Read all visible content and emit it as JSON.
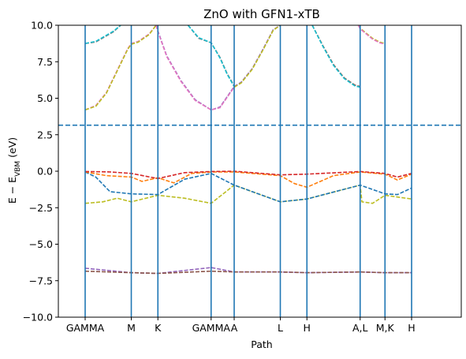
{
  "chart_data": {
    "type": "line",
    "title": "ZnO with GFN1-xTB",
    "xlabel": "Path",
    "ylabel": "E − E_VBM (eV)",
    "ylim": [
      -10,
      10
    ],
    "yticks": [
      -10.0,
      -7.5,
      -5.0,
      -2.5,
      0.0,
      2.5,
      5.0,
      7.5,
      10.0
    ],
    "ytick_labels": [
      "−10.0",
      "−7.5",
      "−5.0",
      "−2.5",
      "0.0",
      "2.5",
      "5.0",
      "7.5",
      "10.0"
    ],
    "x_range": [
      0,
      1
    ],
    "kpoints": [
      {
        "label": "GAMMA",
        "x": 0.0
      },
      {
        "label": "M",
        "x": 0.13
      },
      {
        "label": "K",
        "x": 0.205
      },
      {
        "label": "GAMMA",
        "x": 0.355
      },
      {
        "label": "A",
        "x": 0.42
      },
      {
        "label": "L",
        "x": 0.55
      },
      {
        "label": "H",
        "x": 0.625
      },
      {
        "label": "A,L",
        "x": 0.775
      },
      {
        "label": "M,K",
        "x": 0.845
      },
      {
        "label": "H",
        "x": 0.92
      }
    ],
    "vbm_offset_line": 3.15,
    "grid": false,
    "series": [
      {
        "color": "#9467bd",
        "x": [
          0.0,
          0.13,
          0.205,
          0.355,
          0.42,
          0.55,
          0.625,
          0.775,
          0.845,
          0.92
        ],
        "values": [
          -6.65,
          -6.95,
          -7.0,
          -6.6,
          -6.9,
          -6.9,
          -6.95,
          -6.9,
          -6.95,
          -6.95
        ]
      },
      {
        "color": "#8c564b",
        "x": [
          0.0,
          0.13,
          0.205,
          0.355,
          0.42,
          0.55,
          0.625,
          0.775,
          0.845,
          0.92
        ],
        "values": [
          -6.85,
          -6.95,
          -7.0,
          -6.85,
          -6.9,
          -6.9,
          -6.95,
          -6.9,
          -6.95,
          -6.95
        ]
      },
      {
        "color": "#bcbd22",
        "x": [
          0.0,
          0.05,
          0.09,
          0.13,
          0.205,
          0.28,
          0.355,
          0.42,
          0.55,
          0.625,
          0.775,
          0.78,
          0.81,
          0.845,
          0.92
        ],
        "values": [
          -2.2,
          -2.1,
          -1.85,
          -2.1,
          -1.65,
          -1.85,
          -2.2,
          -0.95,
          -2.1,
          -1.9,
          -0.95,
          -2.1,
          -2.2,
          -1.65,
          -1.9
        ]
      },
      {
        "color": "#1f77b4",
        "x": [
          0.0,
          0.03,
          0.07,
          0.13,
          0.205,
          0.28,
          0.355,
          0.42,
          0.55,
          0.625,
          0.775,
          0.845,
          0.88,
          0.92
        ],
        "values": [
          -0.05,
          -0.4,
          -1.4,
          -1.55,
          -1.6,
          -0.55,
          -0.15,
          -0.95,
          -2.1,
          -1.9,
          -0.95,
          -1.55,
          -1.6,
          -1.15
        ]
      },
      {
        "color": "#ff7f0e",
        "x": [
          0.0,
          0.06,
          0.13,
          0.16,
          0.205,
          0.25,
          0.3,
          0.355,
          0.42,
          0.55,
          0.59,
          0.625,
          0.7,
          0.775,
          0.845,
          0.88,
          0.92
        ],
        "values": [
          -0.05,
          -0.3,
          -0.4,
          -0.7,
          -0.45,
          -0.8,
          -0.15,
          -0.05,
          -0.05,
          -0.3,
          -0.85,
          -1.1,
          -0.3,
          -0.05,
          -0.2,
          -0.6,
          -0.2
        ]
      },
      {
        "color": "#d62728",
        "x": [
          0.0,
          0.07,
          0.13,
          0.205,
          0.28,
          0.355,
          0.42,
          0.55,
          0.625,
          0.775,
          0.845,
          0.88,
          0.92
        ],
        "values": [
          -0.02,
          -0.05,
          -0.15,
          -0.5,
          -0.1,
          -0.02,
          0.0,
          -0.25,
          -0.2,
          -0.02,
          -0.15,
          -0.4,
          -0.15
        ]
      },
      {
        "color": "#7f7f7f",
        "x": [
          0.0,
          0.03,
          0.08,
          0.1
        ],
        "values": [
          8.75,
          8.85,
          9.55,
          10.0
        ]
      },
      {
        "color": "#17becf",
        "x": [
          0.0,
          0.03,
          0.08,
          0.1
        ],
        "values": [
          8.75,
          8.9,
          9.6,
          10.0
        ]
      },
      {
        "color": "#e377c2",
        "x": [
          0.0,
          0.03,
          0.06,
          0.09,
          0.12,
          0.13,
          0.15,
          0.18,
          0.2
        ],
        "values": [
          4.2,
          4.5,
          5.4,
          6.9,
          8.4,
          8.75,
          8.9,
          9.4,
          10.0
        ]
      },
      {
        "color": "#bcbd22",
        "x": [
          0.0,
          0.03,
          0.06,
          0.09,
          0.12,
          0.13,
          0.15,
          0.18,
          0.2
        ],
        "values": [
          4.2,
          4.45,
          5.35,
          6.85,
          8.35,
          8.7,
          8.85,
          9.35,
          10.0
        ]
      },
      {
        "color": "#9467bd",
        "x": [
          0.2,
          0.205,
          0.23,
          0.27,
          0.31,
          0.355,
          0.38,
          0.42
        ],
        "values": [
          10.0,
          9.6,
          7.9,
          6.2,
          4.9,
          4.2,
          4.4,
          5.8
        ]
      },
      {
        "color": "#e377c2",
        "x": [
          0.2,
          0.205,
          0.23,
          0.27,
          0.31,
          0.355,
          0.38,
          0.42
        ],
        "values": [
          10.0,
          9.55,
          7.85,
          6.15,
          4.85,
          4.2,
          4.35,
          5.75
        ]
      },
      {
        "color": "#7f7f7f",
        "x": [
          0.29,
          0.32,
          0.355,
          0.38,
          0.4,
          0.42
        ],
        "values": [
          10.0,
          9.1,
          8.8,
          7.8,
          6.7,
          5.85
        ]
      },
      {
        "color": "#17becf",
        "x": [
          0.29,
          0.32,
          0.355,
          0.38,
          0.4,
          0.42
        ],
        "values": [
          10.0,
          9.15,
          8.8,
          7.75,
          6.65,
          5.8
        ]
      },
      {
        "color": "#9467bd",
        "x": [
          0.42,
          0.44,
          0.47,
          0.5,
          0.53,
          0.55
        ],
        "values": [
          5.8,
          6.1,
          7.0,
          8.3,
          9.7,
          10.0
        ]
      },
      {
        "color": "#bcbd22",
        "x": [
          0.42,
          0.44,
          0.47,
          0.5,
          0.53,
          0.55
        ],
        "values": [
          5.75,
          6.05,
          6.95,
          8.25,
          9.65,
          10.0
        ]
      },
      {
        "color": "#8c564b",
        "x": [
          0.64,
          0.67,
          0.7,
          0.73,
          0.76,
          0.775
        ],
        "values": [
          10.0,
          8.6,
          7.3,
          6.4,
          5.9,
          5.8
        ]
      },
      {
        "color": "#17becf",
        "x": [
          0.64,
          0.67,
          0.7,
          0.73,
          0.76,
          0.775
        ],
        "values": [
          10.0,
          8.55,
          7.25,
          6.35,
          5.85,
          5.75
        ]
      },
      {
        "color": "#bcbd22",
        "x": [
          0.77,
          0.775,
          0.79,
          0.81,
          0.83,
          0.845
        ],
        "values": [
          10.0,
          9.8,
          9.5,
          9.1,
          8.85,
          8.75
        ]
      },
      {
        "color": "#e377c2",
        "x": [
          0.77,
          0.775,
          0.79,
          0.81,
          0.83,
          0.845
        ],
        "values": [
          10.0,
          9.75,
          9.45,
          9.05,
          8.8,
          8.7
        ]
      }
    ]
  }
}
